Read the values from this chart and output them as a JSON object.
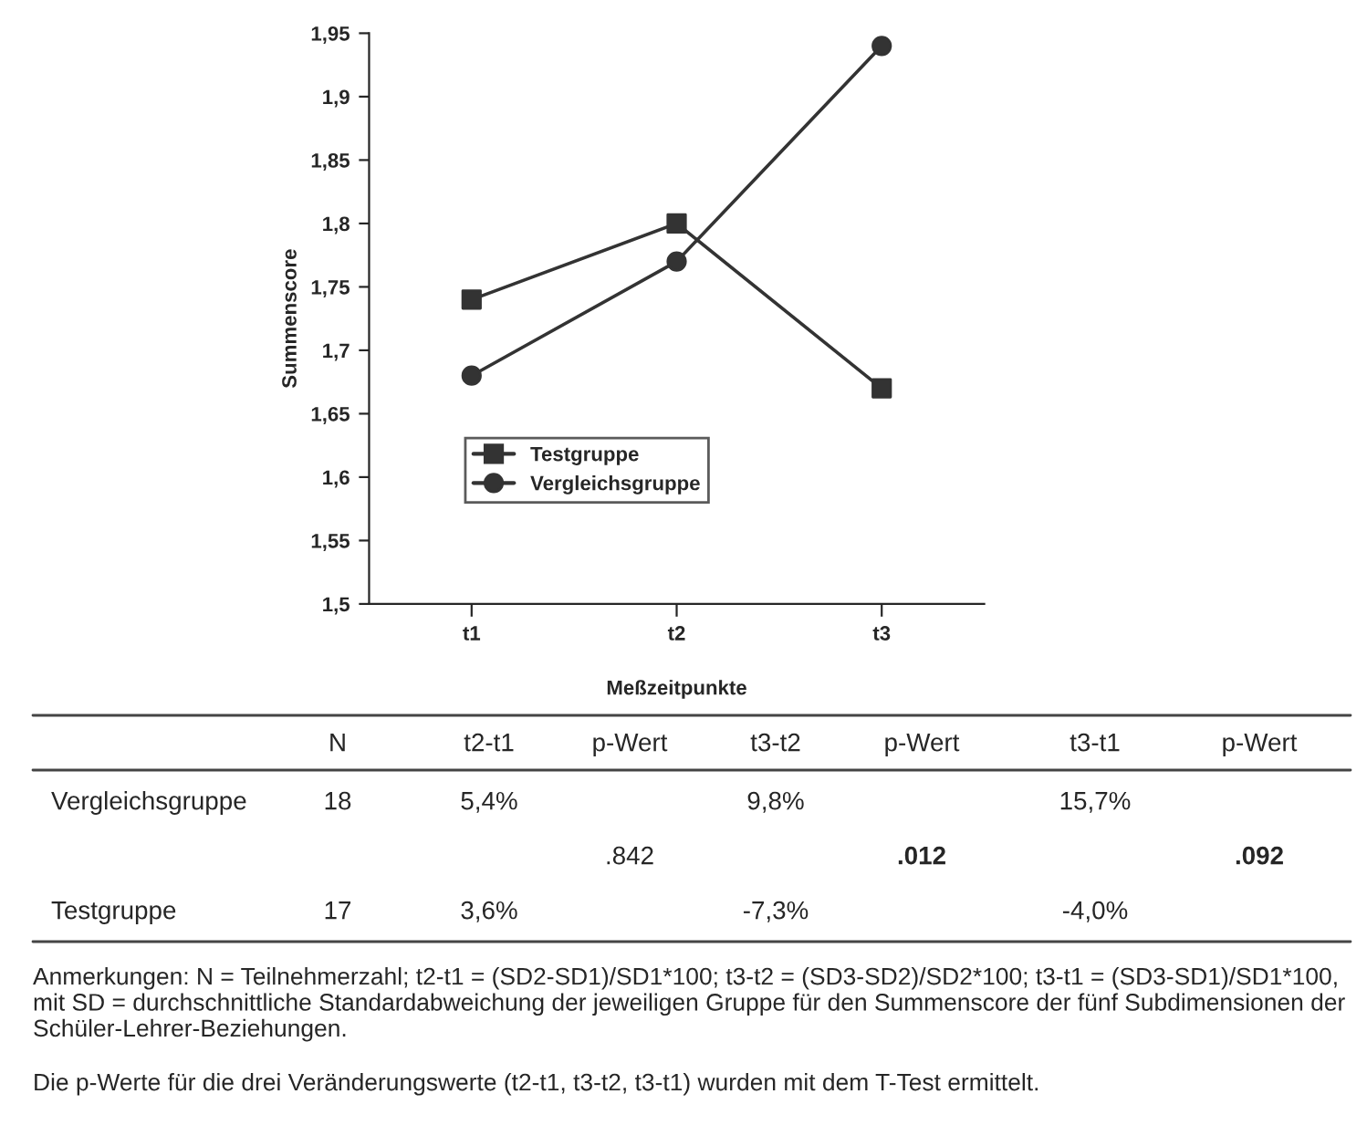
{
  "chart_data": {
    "type": "line",
    "ylabel": "Summenscore",
    "xlabel": "Meßzeitpunkte",
    "categories": [
      "t1",
      "t2",
      "t3"
    ],
    "series": [
      {
        "name": "Testgruppe",
        "color": "#333333",
        "marker": "square",
        "values": [
          1.74,
          1.8,
          1.67
        ]
      },
      {
        "name": "Vergleichsgruppe",
        "color": "#333333",
        "marker": "circle",
        "values": [
          1.68,
          1.77,
          1.94
        ]
      }
    ],
    "ylim": [
      1.5,
      1.95
    ],
    "yticks": [
      {
        "value": 1.5,
        "label": "1,5"
      },
      {
        "value": 1.55,
        "label": "1,55"
      },
      {
        "value": 1.6,
        "label": "1,6"
      },
      {
        "value": 1.65,
        "label": "1,65"
      },
      {
        "value": 1.7,
        "label": "1,7"
      },
      {
        "value": 1.75,
        "label": "1,75"
      },
      {
        "value": 1.8,
        "label": "1,8"
      },
      {
        "value": 1.85,
        "label": "1,85"
      },
      {
        "value": 1.9,
        "label": "1,9"
      },
      {
        "value": 1.95,
        "label": "1,95"
      }
    ],
    "grid": false,
    "legend": "left",
    "line_style": "solid",
    "annotations": [
      "N",
      "t2-t1",
      "p-Wert",
      "t3-t2",
      "p-Wert",
      "t3-t1",
      "p-Wert",
      "Vergleichsgruppe",
      "18",
      "5,4%",
      "9,8%",
      "15,7%",
      ".842",
      ".012",
      ".092",
      "Testgruppe",
      "17",
      "3,6%",
      "-7,3%",
      "-4,0%",
      "Anmerkungen: N = Teilnehmerzahl; t2-t1 = (SD2-SD1)/SD1*100; t3-t2 = (SD3-SD2)/SD2*100; t3-t1 = (SD3-SD1)/SD1*100, mit SD = durchschnittliche Standardabweichung der jeweiligen Gruppe für den Summenscore der fünf Subdimensionen der Schüler-Lehrer-Beziehungen.",
      "Die p-Werte für die drei Veränderungswerte (t2-t1, t3-t2, t3-t1) wurden mit dem T-Test ermittelt."
    ]
  }
}
